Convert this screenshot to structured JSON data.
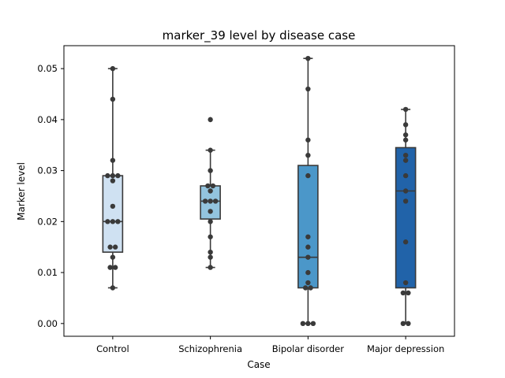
{
  "chart_data": {
    "type": "box",
    "title": "marker_39 level by disease case",
    "xlabel": "Case",
    "ylabel": "Marker level",
    "ylim": [
      -0.0025,
      0.0545
    ],
    "yticks": [
      0.0,
      0.01,
      0.02,
      0.03,
      0.04,
      0.05
    ],
    "ytick_labels": [
      "0.00",
      "0.01",
      "0.02",
      "0.03",
      "0.04",
      "0.05"
    ],
    "categories": [
      "Control",
      "Schizophrenia",
      "Bipolar disorder",
      "Major depression"
    ],
    "colors": [
      "#cfe1f2",
      "#93c4de",
      "#4b97c9",
      "#2163a9"
    ],
    "boxes": [
      {
        "name": "Control",
        "whisker_low": 0.007,
        "q1": 0.014,
        "median": 0.02,
        "q3": 0.029,
        "whisker_high": 0.05,
        "fliers": []
      },
      {
        "name": "Schizophrenia",
        "whisker_low": 0.011,
        "q1": 0.0205,
        "median": 0.024,
        "q3": 0.027,
        "whisker_high": 0.034,
        "fliers": [
          0.04
        ]
      },
      {
        "name": "Bipolar disorder",
        "whisker_low": 0.0,
        "q1": 0.007,
        "median": 0.013,
        "q3": 0.031,
        "whisker_high": 0.052,
        "fliers": []
      },
      {
        "name": "Major depression",
        "whisker_low": 0.0,
        "q1": 0.007,
        "median": 0.026,
        "q3": 0.0345,
        "whisker_high": 0.042,
        "fliers": []
      }
    ],
    "points": [
      [
        0.05,
        0.044,
        0.032,
        0.029,
        0.029,
        0.029,
        0.028,
        0.023,
        0.02,
        0.02,
        0.02,
        0.015,
        0.015,
        0.013,
        0.011,
        0.011,
        0.007
      ],
      [
        0.04,
        0.034,
        0.03,
        0.027,
        0.027,
        0.026,
        0.024,
        0.024,
        0.024,
        0.022,
        0.02,
        0.017,
        0.014,
        0.013,
        0.011
      ],
      [
        0.052,
        0.046,
        0.036,
        0.033,
        0.029,
        0.017,
        0.015,
        0.013,
        0.01,
        0.008,
        0.007,
        0.007,
        0.0,
        0.0,
        0.0
      ],
      [
        0.042,
        0.039,
        0.037,
        0.036,
        0.033,
        0.032,
        0.029,
        0.026,
        0.024,
        0.016,
        0.008,
        0.006,
        0.006,
        0.0,
        0.0
      ]
    ]
  }
}
